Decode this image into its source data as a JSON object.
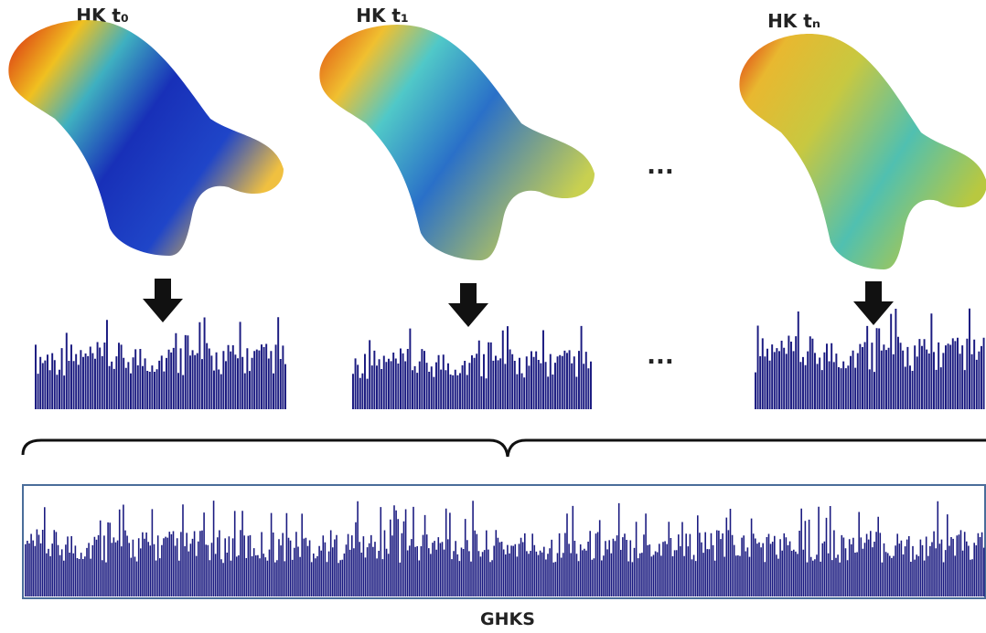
{
  "labels": {
    "hk_t0": "HK t₀",
    "hk_t1": "HK t₁",
    "hk_tn": "HK tₙ",
    "ellipsis_top": "...",
    "ellipsis_bottom": "...",
    "signature": "GHKS"
  }
}
